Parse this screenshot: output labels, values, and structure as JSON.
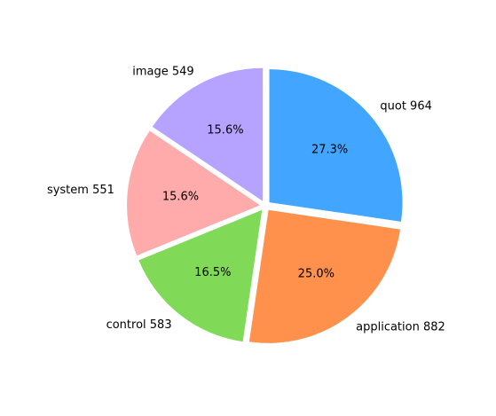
{
  "chart_data": {
    "type": "pie",
    "title": "",
    "categories": [
      "quot",
      "application",
      "control",
      "system",
      "image"
    ],
    "labels": [
      "quot 964",
      "application 882",
      "control 583",
      "system 551",
      "image 549"
    ],
    "values": [
      964,
      882,
      583,
      551,
      549
    ],
    "percent_labels": [
      "27.3%",
      "25.0%",
      "16.5%",
      "15.6%",
      "15.6%"
    ],
    "colors": [
      "#42a5ff",
      "#ff914d",
      "#80d957",
      "#ffabab",
      "#b5a3ff"
    ],
    "start_angle_deg": 90,
    "direction": "clockwise",
    "exploded": true,
    "legend": "none"
  }
}
